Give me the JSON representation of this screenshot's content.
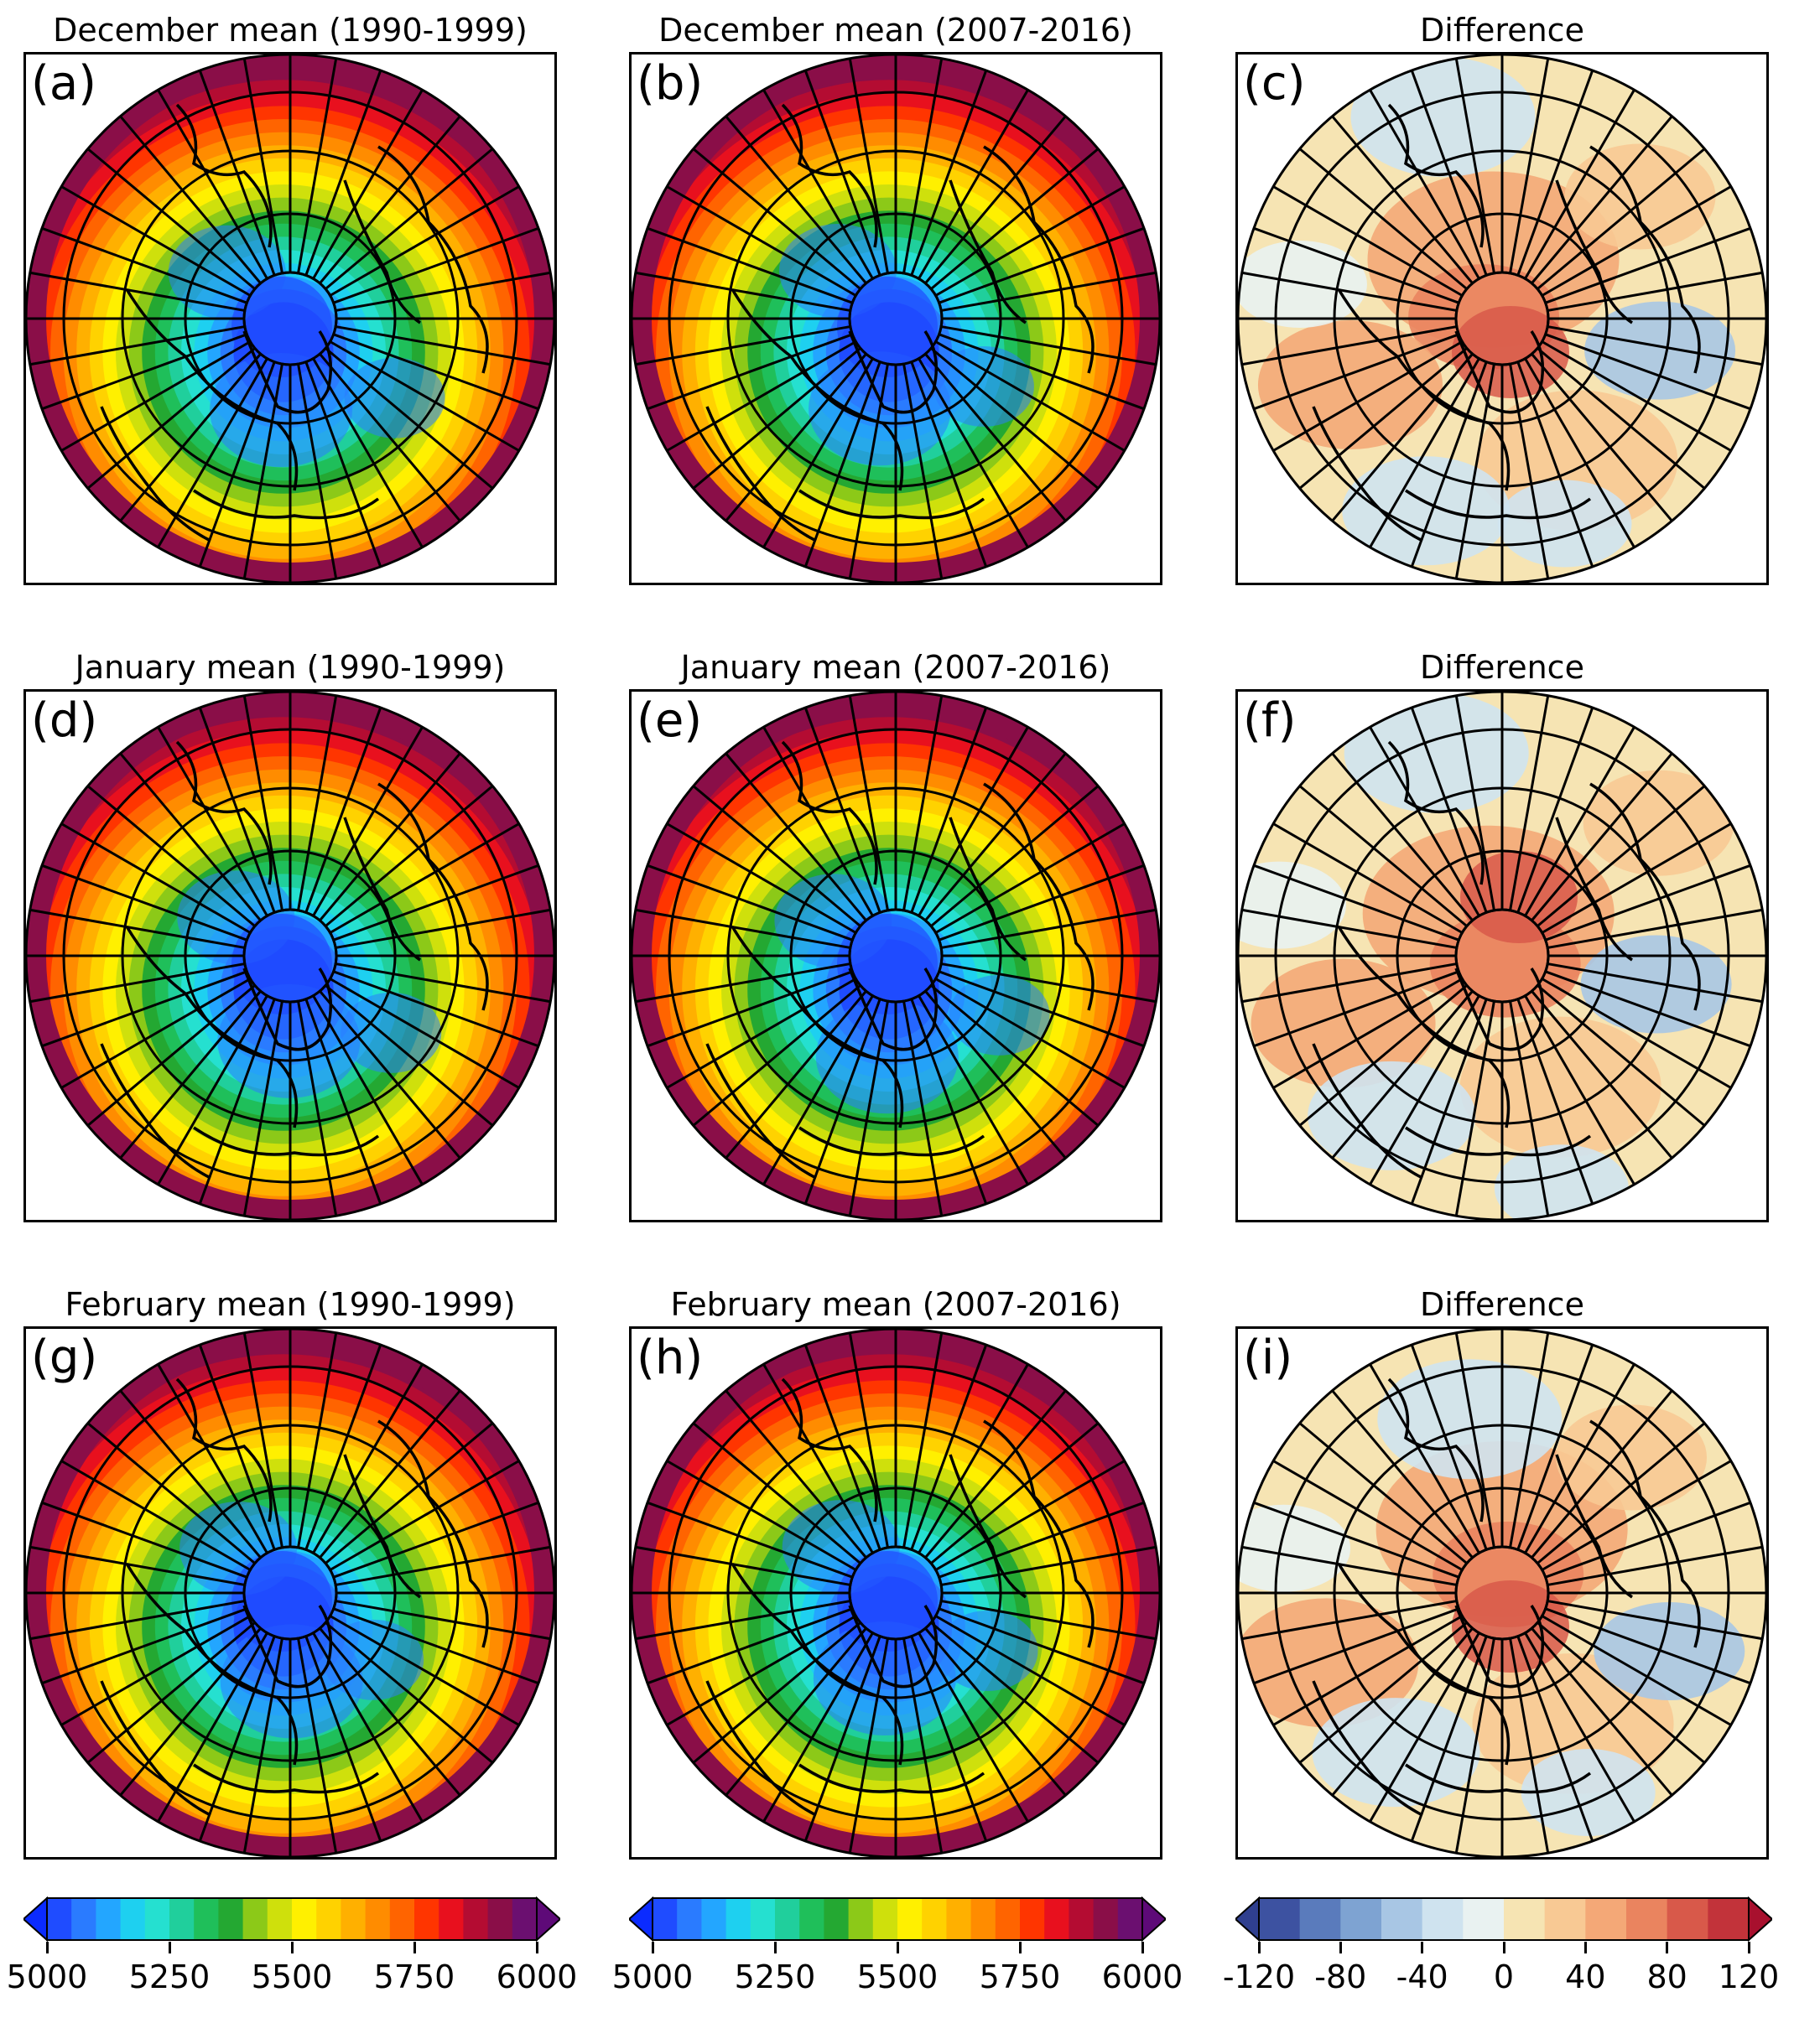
{
  "panels": [
    {
      "id": "a",
      "label": "(a)",
      "title": "December mean (1990-1999)",
      "kind": "abs",
      "variant": 0
    },
    {
      "id": "b",
      "label": "(b)",
      "title": "December mean (2007-2016)",
      "kind": "abs",
      "variant": 1
    },
    {
      "id": "c",
      "label": "(c)",
      "title": "Difference",
      "kind": "diff",
      "variant": 0
    },
    {
      "id": "d",
      "label": "(d)",
      "title": "January mean (1990-1999)",
      "kind": "abs",
      "variant": 2
    },
    {
      "id": "e",
      "label": "(e)",
      "title": "January mean (2007-2016)",
      "kind": "abs",
      "variant": 3
    },
    {
      "id": "f",
      "label": "(f)",
      "title": "Difference",
      "kind": "diff",
      "variant": 1
    },
    {
      "id": "g",
      "label": "(g)",
      "title": "February mean (1990-1999)",
      "kind": "abs",
      "variant": 4
    },
    {
      "id": "h",
      "label": "(h)",
      "title": "February mean (2007-2016)",
      "kind": "abs",
      "variant": 5
    },
    {
      "id": "i",
      "label": "(i)",
      "title": "Difference",
      "kind": "diff",
      "variant": 2
    }
  ],
  "colorbars": [
    {
      "kind": "abs",
      "ticks": [
        "5000",
        "5250",
        "5500",
        "5750",
        "6000"
      ],
      "range": [
        5000,
        6000
      ],
      "colors": [
        "#1f4cff",
        "#2a7bff",
        "#23a6ff",
        "#1ed0f0",
        "#25e0d0",
        "#20cf9c",
        "#1fbf5a",
        "#24a832",
        "#8cc918",
        "#cfe00c",
        "#fff000",
        "#ffd200",
        "#ffb000",
        "#ff8c00",
        "#ff6400",
        "#ff3500",
        "#e8101e",
        "#b40c32",
        "#8a0e48",
        "#6b0f70"
      ],
      "under": "#0b2bff",
      "over": "#5e0a78"
    },
    {
      "kind": "abs",
      "ticks": [
        "5000",
        "5250",
        "5500",
        "5750",
        "6000"
      ],
      "range": [
        5000,
        6000
      ],
      "colors": [
        "#1f4cff",
        "#2a7bff",
        "#23a6ff",
        "#1ed0f0",
        "#25e0d0",
        "#20cf9c",
        "#1fbf5a",
        "#24a832",
        "#8cc918",
        "#cfe00c",
        "#fff000",
        "#ffd200",
        "#ffb000",
        "#ff8c00",
        "#ff6400",
        "#ff3500",
        "#e8101e",
        "#b40c32",
        "#8a0e48",
        "#6b0f70"
      ],
      "under": "#0b2bff",
      "over": "#5e0a78"
    },
    {
      "kind": "diff",
      "ticks": [
        "-120",
        "-80",
        "-40",
        "0",
        "40",
        "80",
        "120"
      ],
      "range": [
        -120,
        120
      ],
      "colors": [
        "#3d52a1",
        "#5a7bbc",
        "#7ea3d2",
        "#a8c6e4",
        "#cfe3ef",
        "#e9f2f1",
        "#f6e4b3",
        "#f8c994",
        "#f4a877",
        "#ea845f",
        "#d8594a",
        "#c2333a"
      ],
      "under": "#2f3f8f",
      "over": "#a8102e"
    }
  ]
}
